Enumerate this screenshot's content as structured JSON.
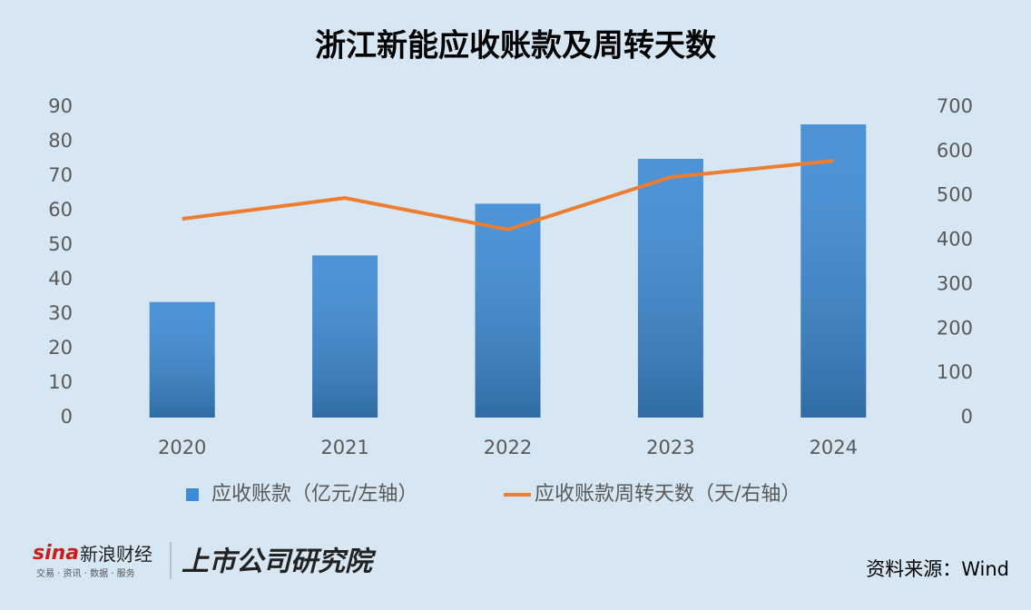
{
  "chart_data": {
    "type": "bar-line",
    "title": "浙江新能应收账款及周转天数",
    "categories": [
      "2020",
      "2021",
      "2022",
      "2023",
      "2024"
    ],
    "series": [
      {
        "name": "应收账款（亿元/左轴）",
        "type": "bar",
        "color": "#3d8bd4",
        "values": [
          33.5,
          47,
          62,
          75,
          85
        ]
      },
      {
        "name": "应收账款周转天数（天/右轴）",
        "type": "line",
        "color": "#ed7d31",
        "axis": "y2",
        "values": [
          448,
          495,
          424,
          542,
          579
        ]
      }
    ],
    "ylim": [
      0,
      90
    ],
    "yticks": [
      0,
      10,
      20,
      30,
      40,
      50,
      60,
      70,
      80,
      90
    ],
    "y2lim": [
      0,
      700
    ],
    "y2ticks": [
      0,
      100,
      200,
      300,
      400,
      500,
      600,
      700
    ],
    "legend": "bottom",
    "brand": "新浪财经",
    "brand_sub": "交易 · 资讯 · 数据 · 服务",
    "institute": "上市公司研究院",
    "source": "资料来源：Wind"
  }
}
